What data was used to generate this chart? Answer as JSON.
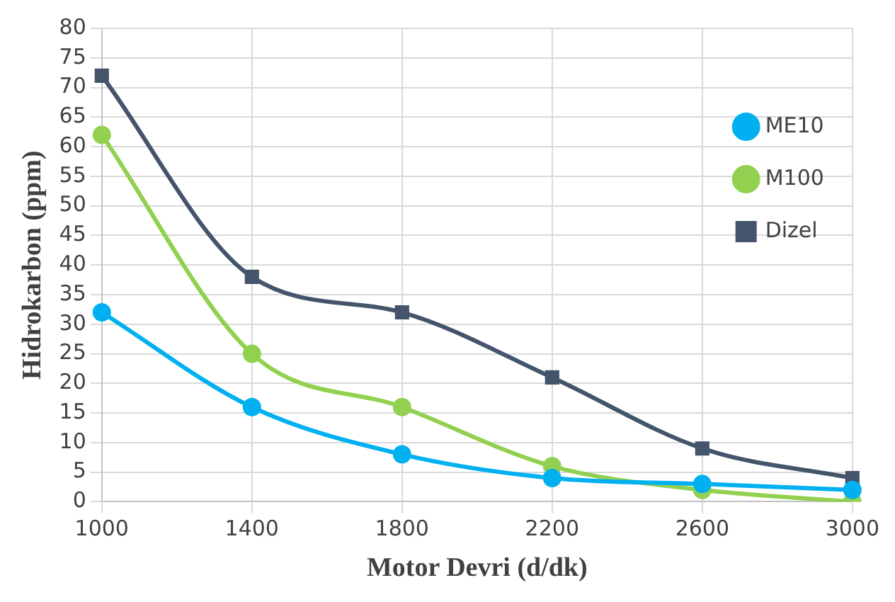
{
  "chart_data": {
    "type": "line",
    "xlabel": "Motor Devri (d/dk)",
    "ylabel": "Hidrokarbon (ppm)",
    "categories": [
      "1000",
      "1400",
      "1800",
      "2200",
      "2600",
      "3000"
    ],
    "series": [
      {
        "name": "Dizel",
        "color": "#44546a",
        "marker": "square",
        "values": [
          72,
          38,
          32,
          21,
          9,
          4
        ]
      },
      {
        "name": "M100",
        "color": "#92d050",
        "marker": "circle",
        "values": [
          62,
          25,
          16,
          6,
          2,
          0
        ]
      },
      {
        "name": "ME10",
        "color": "#00b0f0",
        "marker": "circle",
        "values": [
          32,
          16,
          8,
          4,
          3,
          2
        ]
      }
    ],
    "ylim": [
      0,
      80
    ],
    "yticks": [
      0,
      5,
      10,
      15,
      20,
      25,
      30,
      35,
      40,
      45,
      50,
      55,
      60,
      65,
      70,
      75,
      80
    ],
    "grid": true,
    "legend": "top right"
  }
}
